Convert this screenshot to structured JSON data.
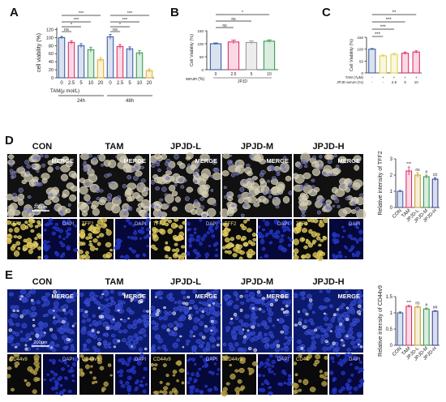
{
  "panels": {
    "A": "A",
    "B": "B",
    "C": "C",
    "D": "D",
    "E": "E"
  },
  "colors": {
    "con": "#3a5fa8",
    "tam": "#e0306c",
    "jpjd_l": "#c9a33a",
    "jpjd_m": "#3a9a55",
    "jpjd_h": "#3a4a9a",
    "grey": "#9a9a9a",
    "nucleus": "#2336a8",
    "tff2": "#e8d27a"
  },
  "chart_data": [
    {
      "id": "A",
      "type": "bar",
      "ylabel": "cell viability (%)",
      "ylim": [
        0,
        125
      ],
      "yticks": [
        0,
        20,
        40,
        60,
        80,
        100,
        120
      ],
      "xlabel": "TAM(μ mol/L)",
      "categories": [
        "0",
        "2.5",
        "5",
        "10",
        "20",
        "0",
        "2.5",
        "5",
        "10",
        "20"
      ],
      "values": [
        100,
        88,
        80,
        70,
        45,
        102,
        78,
        72,
        62,
        18
      ],
      "errors": [
        3,
        4,
        5,
        6,
        5,
        6,
        5,
        5,
        6,
        4
      ],
      "groups": [
        {
          "label": "24h",
          "from": 0,
          "to": 4
        },
        {
          "label": "48h",
          "from": 5,
          "to": 9
        }
      ],
      "colors": [
        "#3a5fa8",
        "#e0306c",
        "#3a5fa8",
        "#3a9a55",
        "#e0b030",
        "#3a5fa8",
        "#e0306c",
        "#3a5fa8",
        "#3a9a55",
        "#e0b030"
      ],
      "sig": [
        {
          "from": 0,
          "to": 4,
          "label": "***"
        },
        {
          "from": 0,
          "to": 3,
          "label": "***"
        },
        {
          "from": 0,
          "to": 2,
          "label": "*"
        },
        {
          "from": 0,
          "to": 1,
          "label": "ns"
        },
        {
          "from": 5,
          "to": 9,
          "label": "***"
        },
        {
          "from": 5,
          "to": 8,
          "label": "***"
        },
        {
          "from": 5,
          "to": 7,
          "label": "*"
        },
        {
          "from": 5,
          "to": 6,
          "label": "ns"
        }
      ]
    },
    {
      "id": "B",
      "type": "bar",
      "ylabel": "Cell Viability (%)",
      "ylim": [
        0,
        150
      ],
      "yticks": [
        0,
        50,
        100,
        150
      ],
      "xlabel": "serum (%)",
      "xsub": "JPJD",
      "categories": [
        "0",
        "2.5",
        "5",
        "10"
      ],
      "values": [
        100,
        107,
        105,
        110
      ],
      "errors": [
        3,
        7,
        6,
        5
      ],
      "colors": [
        "#3a5fa8",
        "#e0306c",
        "#9a9a9a",
        "#3a9a55"
      ],
      "sig": [
        {
          "from": 0,
          "to": 3,
          "label": "*"
        },
        {
          "from": 0,
          "to": 2,
          "label": "ns"
        },
        {
          "from": 0,
          "to": 1,
          "label": "ns"
        }
      ]
    },
    {
      "id": "C",
      "type": "bar",
      "ylabel": "Cell Viability (%)",
      "ylim": [
        0,
        150
      ],
      "yticks": [
        0,
        50,
        100,
        150
      ],
      "rows": [
        {
          "label": "TAM (7μM)",
          "values": [
            "-",
            "+",
            "+",
            "+",
            "+"
          ]
        },
        {
          "label": "JPJD serum (%)",
          "values": [
            "-",
            "-",
            "2.5",
            "5",
            "10"
          ]
        }
      ],
      "values": [
        100,
        72,
        78,
        83,
        88
      ],
      "errors": [
        3,
        4,
        5,
        5,
        5
      ],
      "colors": [
        "#3a5fa8",
        "#e0d050",
        "#e0d050",
        "#e0306c",
        "#e0306c"
      ],
      "sig": [
        {
          "from": 0,
          "to": 4,
          "label": "**"
        },
        {
          "from": 0,
          "to": 3,
          "label": "***"
        },
        {
          "from": 0,
          "to": 2,
          "label": "***"
        },
        {
          "from": 0,
          "to": 1,
          "label": "***"
        }
      ]
    },
    {
      "id": "D-chart",
      "type": "bar",
      "ylabel": "Relative intensity of  TFF2",
      "ylim": [
        0,
        3
      ],
      "yticks": [
        0,
        1,
        2,
        3
      ],
      "categories": [
        "CON",
        "TAM",
        "JPJD-L",
        "JPJD-M",
        "JPJD-H"
      ],
      "values": [
        1.0,
        2.25,
        2.0,
        1.9,
        1.75
      ],
      "errors": [
        0.05,
        0.25,
        0.15,
        0.1,
        0.08
      ],
      "colors": [
        "#3a5fa8",
        "#e0306c",
        "#c9a33a",
        "#3a9a55",
        "#3a4a9a"
      ],
      "annotations": [
        "",
        "***",
        "ns",
        "#",
        "##"
      ]
    },
    {
      "id": "E-chart",
      "type": "bar",
      "ylabel": "Relative intensity of CD44v9",
      "ylim": [
        0.0,
        1.5
      ],
      "yticks": [
        0.0,
        0.5,
        1.0,
        1.5
      ],
      "categories": [
        "CON",
        "TAM",
        "JPJD-L",
        "JPJD-M",
        "JPJD-H"
      ],
      "values": [
        1.0,
        1.2,
        1.18,
        1.12,
        1.05
      ],
      "errors": [
        0.03,
        0.03,
        0.03,
        0.03,
        0.02
      ],
      "colors": [
        "#3a5fa8",
        "#e0306c",
        "#c9a33a",
        "#3a9a55",
        "#3a4a9a"
      ],
      "annotations": [
        "",
        "***",
        "ns",
        "#",
        "##"
      ]
    }
  ],
  "panel_D": {
    "groups": [
      "CON",
      "TAM",
      "JPJD-L",
      "JPJD-M",
      "JPJD-H"
    ],
    "merge_label": "MERGE",
    "small_labels": [
      [
        "TFF2",
        "DAPI"
      ],
      [
        "TFF2",
        "DAPI"
      ],
      [
        "TFF2",
        "DAPI"
      ],
      [
        "TFF2",
        "DAPI"
      ],
      [
        "TFF2",
        "DAPI"
      ]
    ],
    "scale_bar": "200μm"
  },
  "panel_E": {
    "groups": [
      "CON",
      "TAM",
      "JPJD-L",
      "JPJD-M",
      "JPJD-H"
    ],
    "merge_label": "MERGE",
    "small_labels": [
      [
        "CD44v9",
        "DAPI"
      ],
      [
        "CD44v9",
        "DAPI"
      ],
      [
        "CD44v9",
        "DAPI"
      ],
      [
        "CD44v9",
        "DAPI"
      ],
      [
        "CD44",
        "DAPI"
      ]
    ],
    "scale_bar": "200μm"
  }
}
